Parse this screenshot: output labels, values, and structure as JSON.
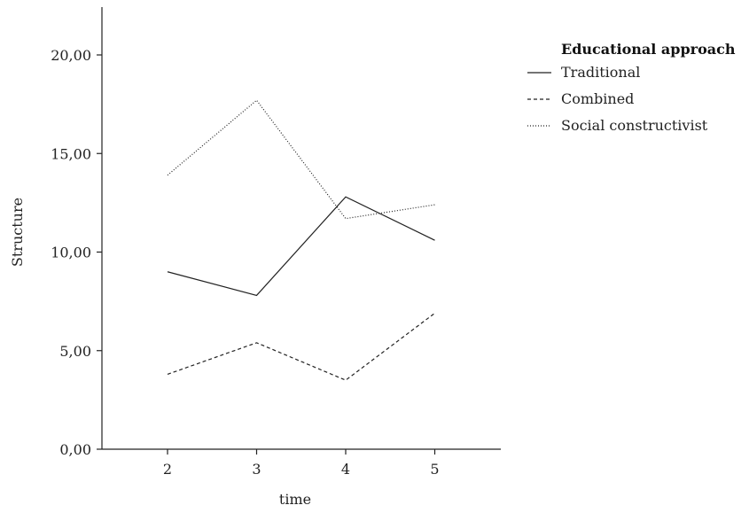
{
  "chart_data": {
    "type": "line",
    "xlabel": "time",
    "ylabel": "Structure",
    "categories": [
      "2",
      "3",
      "4",
      "5"
    ],
    "ylim": [
      0,
      22
    ],
    "y_ticks": [
      "0,00",
      "5,00",
      "10,00",
      "15,00",
      "20,00"
    ],
    "y_tick_values": [
      0,
      5,
      10,
      15,
      20
    ],
    "grid": false,
    "legend": {
      "title": "Educational approach",
      "placement": "top-right"
    },
    "series": [
      {
        "name": "Traditional",
        "values": [
          9.0,
          7.8,
          12.8,
          10.6
        ],
        "dash": "solid"
      },
      {
        "name": "Combined",
        "values": [
          3.8,
          5.4,
          3.5,
          6.9
        ],
        "dash": "dashed"
      },
      {
        "name": "Social constructivist",
        "values": [
          13.9,
          17.7,
          11.7,
          12.4
        ],
        "dash": "dotted"
      }
    ]
  }
}
